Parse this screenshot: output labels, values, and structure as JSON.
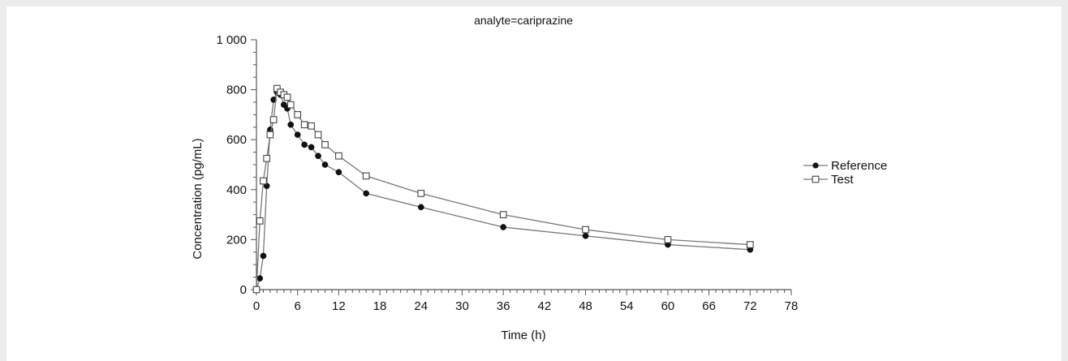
{
  "chart_data": {
    "type": "line",
    "title": "analyte=cariprazine",
    "xlabel": "Time (h)",
    "ylabel": "Concentration (pg/mL)",
    "xlim": [
      0,
      78
    ],
    "ylim": [
      0,
      1000
    ],
    "xticks": [
      0,
      6,
      12,
      18,
      24,
      30,
      36,
      42,
      48,
      54,
      60,
      66,
      72,
      78
    ],
    "xtick_labels": [
      "0",
      "6",
      "12",
      "18",
      "24",
      "30",
      "36",
      "42",
      "48",
      "54",
      "60",
      "66",
      "72",
      "78"
    ],
    "yticks": [
      0,
      200,
      400,
      600,
      800,
      1000
    ],
    "ytick_labels": [
      "0",
      "200",
      "400",
      "600",
      "800",
      "1 000"
    ],
    "grid": false,
    "legend_position": "right",
    "series": [
      {
        "name": "Reference",
        "marker": "filled-circle",
        "color": "#555555",
        "x": [
          0,
          0.5,
          1,
          1.5,
          2,
          2.5,
          3,
          3.5,
          4,
          4.5,
          5,
          6,
          7,
          8,
          9,
          10,
          12,
          16,
          24,
          36,
          48,
          60,
          72
        ],
        "y": [
          0,
          45,
          135,
          415,
          640,
          760,
          790,
          780,
          740,
          725,
          660,
          620,
          580,
          570,
          535,
          500,
          470,
          385,
          330,
          250,
          215,
          180,
          160
        ]
      },
      {
        "name": "Test",
        "marker": "open-square",
        "color": "#555555",
        "x": [
          0,
          0.5,
          1,
          1.5,
          2,
          2.5,
          3,
          3.5,
          4,
          4.5,
          5,
          6,
          7,
          8,
          9,
          10,
          12,
          16,
          24,
          36,
          48,
          60,
          72
        ],
        "y": [
          0,
          275,
          435,
          525,
          620,
          680,
          805,
          790,
          780,
          770,
          740,
          700,
          660,
          655,
          620,
          580,
          535,
          455,
          385,
          300,
          240,
          200,
          180
        ]
      }
    ]
  }
}
